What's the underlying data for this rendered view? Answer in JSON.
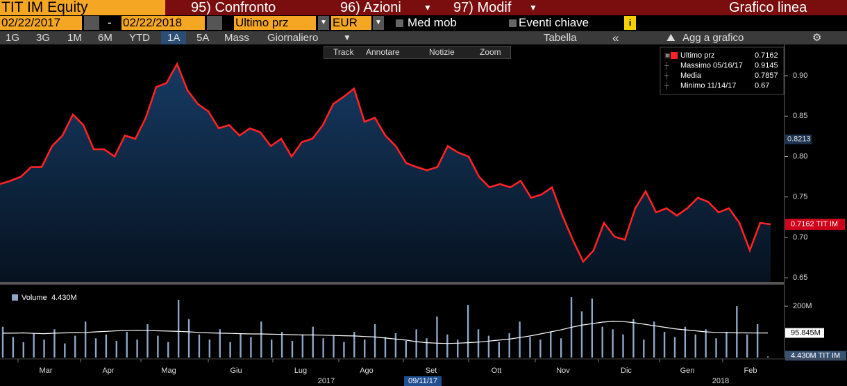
{
  "header": {
    "ticker": "TIT IM Equity",
    "confronto": "95) Confronto",
    "azioni": "96) Azioni",
    "modif": "97) Modif",
    "chart_type": "Grafico linea"
  },
  "settings": {
    "start": "02/22/2017",
    "sep": "-",
    "end": "02/22/2018",
    "field": "Ultimo prz",
    "currency": "EUR",
    "mov_avg": "Med mob",
    "events": "Eventi chiave"
  },
  "tabs": [
    "1G",
    "3G",
    "1M",
    "6M",
    "YTD",
    "1A",
    "5A",
    "Mass",
    "Giornaliero"
  ],
  "tabs_right": {
    "table": "Tabella",
    "add": "Agg a grafico"
  },
  "tools": [
    "Track",
    "Annotare",
    "Notizie",
    "Zoom"
  ],
  "chart_data": [
    {
      "type": "area",
      "series": [
        {
          "name": "TIT IM",
          "color": "#ff2222",
          "values": [
            0.766,
            0.77,
            0.775,
            0.787,
            0.787,
            0.813,
            0.826,
            0.852,
            0.839,
            0.809,
            0.809,
            0.8,
            0.826,
            0.822,
            0.848,
            0.886,
            0.891,
            0.9145,
            0.882,
            0.865,
            0.856,
            0.835,
            0.839,
            0.826,
            0.835,
            0.83,
            0.813,
            0.822,
            0.8,
            0.818,
            0.822,
            0.839,
            0.865,
            0.874,
            0.884,
            0.843,
            0.848,
            0.826,
            0.813,
            0.792,
            0.787,
            0.783,
            0.787,
            0.813,
            0.805,
            0.8,
            0.775,
            0.762,
            0.766,
            0.762,
            0.77,
            0.749,
            0.753,
            0.762,
            0.727,
            0.697,
            0.67,
            0.684,
            0.718,
            0.701,
            0.697,
            0.736,
            0.757,
            0.731,
            0.736,
            0.727,
            0.736,
            0.749,
            0.744,
            0.731,
            0.736,
            0.718,
            0.684,
            0.718,
            0.7162
          ]
        }
      ],
      "ylim": [
        0.645,
        0.9387
      ],
      "yticks": [
        {
          "value": 0.65,
          "label": "0.65"
        },
        {
          "value": 0.7,
          "label": "0.70"
        },
        {
          "value": 0.75,
          "label": "0.75"
        },
        {
          "value": 0.8,
          "label": "0.80"
        },
        {
          "value": 0.85,
          "label": "0.85"
        },
        {
          "value": 0.9,
          "label": "0.90"
        }
      ],
      "legend": [
        {
          "label": "Ultimo prz",
          "value": 0.7162
        },
        {
          "label": "Massimo 05/16/17",
          "value": 0.9145
        },
        {
          "label": "Media",
          "value": 0.7857
        },
        {
          "label": "Minimo 11/14/17",
          "value": 0.67
        }
      ],
      "marker_label": 0.8213,
      "last_label": {
        "value": 0.7162,
        "label": "0.7162 TIT IM"
      }
    },
    {
      "type": "bar",
      "series": [
        {
          "name": "Volume",
          "color": "#8fa6c8",
          "values": [
            120,
            80,
            60,
            95,
            70,
            110,
            55,
            85,
            140,
            75,
            90,
            65,
            100,
            70,
            130,
            85,
            60,
            225,
            150,
            90,
            70,
            110,
            60,
            95,
            80,
            140,
            70,
            100,
            65,
            90,
            120,
            75,
            85,
            60,
            100,
            70,
            130,
            80,
            95,
            65,
            110,
            75,
            160,
            90,
            70,
            205,
            110,
            85,
            60,
            95,
            140,
            80,
            70,
            100,
            75,
            235,
            180,
            230,
            120,
            110,
            90,
            150,
            70,
            140,
            100,
            80,
            120,
            90,
            110,
            75,
            100,
            200,
            90,
            130,
            4.43
          ]
        },
        {
          "color": "#ffffff",
          "values": [
            95,
            95,
            96,
            94,
            93,
            95,
            96,
            97,
            98,
            100,
            102,
            104,
            105,
            106,
            105,
            104,
            103,
            102,
            100,
            98,
            96,
            95,
            94,
            93,
            92,
            92,
            91,
            90,
            89,
            88,
            88,
            87,
            86,
            85,
            84,
            82,
            80,
            76,
            72,
            68,
            62,
            58,
            56,
            55,
            56,
            58,
            60,
            64,
            68,
            72,
            78,
            84,
            92,
            100,
            108,
            118,
            126,
            132,
            138,
            141,
            140,
            136,
            130,
            124,
            118,
            112,
            108,
            104,
            100,
            98,
            97,
            96,
            96,
            95.5,
            95.845
          ]
        }
      ],
      "ylim": [
        0,
        284
      ],
      "yticks": [
        {
          "value": 200,
          "label": "200M"
        }
      ],
      "legend_value": {
        "value": 4.43,
        "label": "4.430M"
      },
      "ma_label": {
        "value": 95.845,
        "label": "95.845M"
      },
      "last_label": {
        "value": 4.43,
        "label": "4.430M TIT IM"
      },
      "months": [
        "Mar",
        "Apr",
        "Mag",
        "Giu",
        "Lug",
        "Ago",
        "Set",
        "Ott",
        "Nov",
        "Dic",
        "Gen",
        "Feb"
      ],
      "years": [
        "2017",
        "2018"
      ],
      "cursor_label": "09/11/17"
    }
  ]
}
